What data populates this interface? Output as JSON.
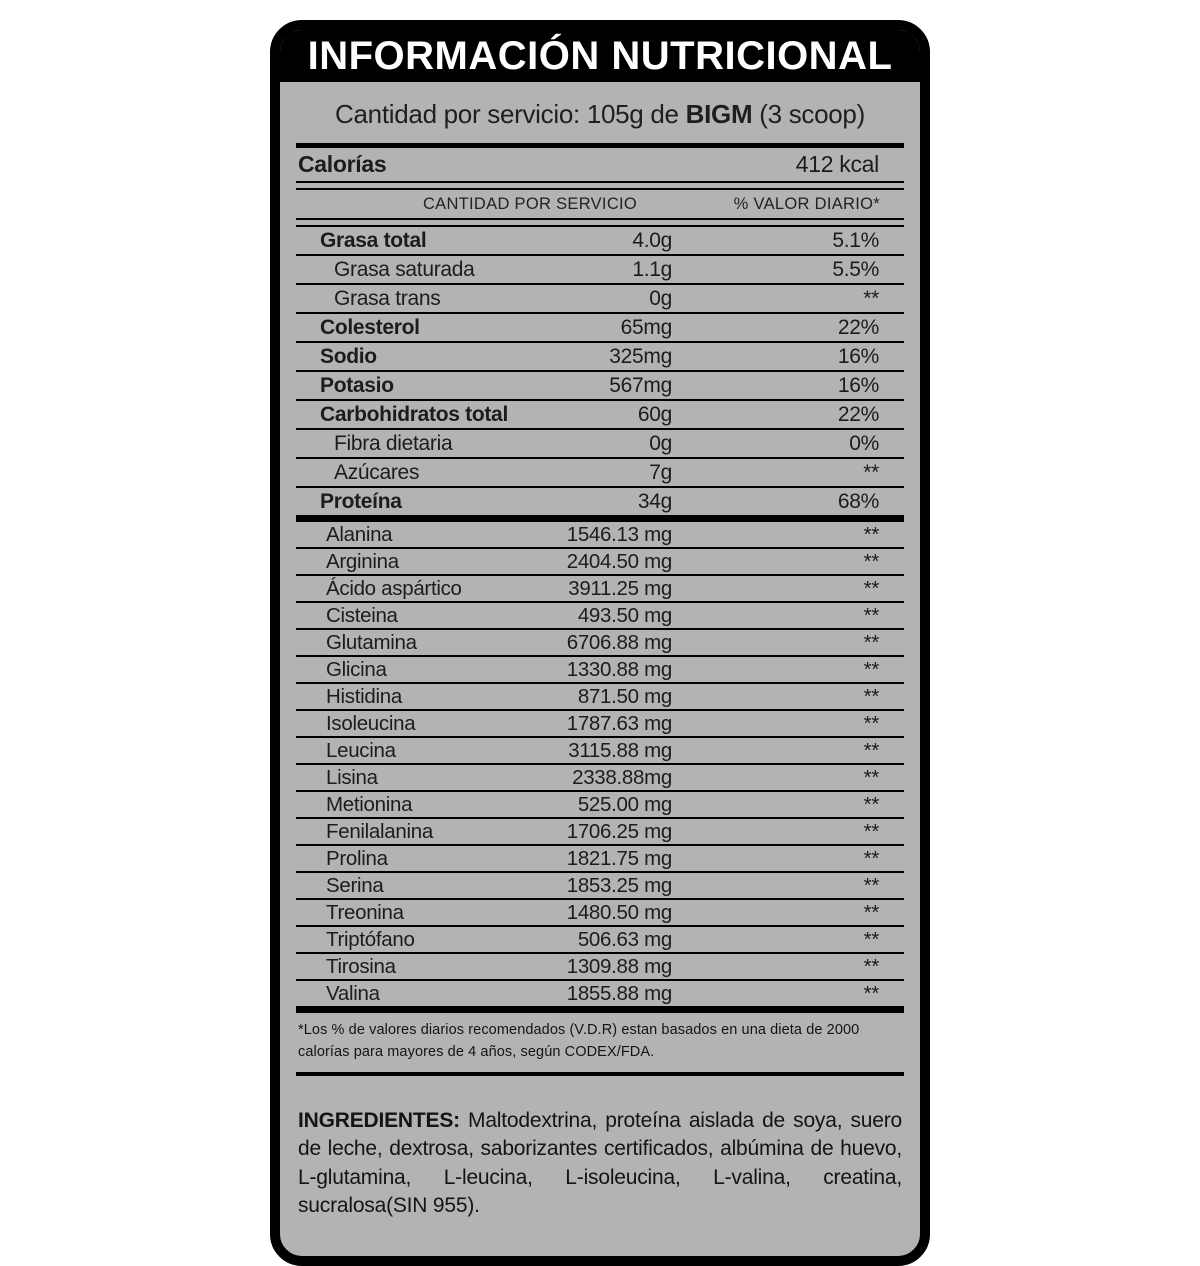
{
  "label": {
    "title": "INFORMACIÓN NUTRICIONAL",
    "serving_line": {
      "prefix": "Cantidad por servicio: 105g de ",
      "brand": "BIGM",
      "suffix": " (3 scoop)"
    },
    "calories": {
      "name": "Calorías",
      "value": "412 kcal"
    },
    "columns": {
      "amount": "CANTIDAD POR SERVICIO",
      "daily": "% VALOR DIARIO*"
    },
    "nutrients": [
      {
        "name": "Grasa total",
        "amount": "4.0g",
        "daily": "5.1%",
        "bold": true,
        "indent": false
      },
      {
        "name": "Grasa saturada",
        "amount": "1.1g",
        "daily": "5.5%",
        "bold": false,
        "indent": true
      },
      {
        "name": "Grasa trans",
        "amount": "0g",
        "daily": "**",
        "bold": false,
        "indent": true
      },
      {
        "name": "Colesterol",
        "amount": "65mg",
        "daily": "22%",
        "bold": true,
        "indent": false
      },
      {
        "name": "Sodio",
        "amount": "325mg",
        "daily": "16%",
        "bold": true,
        "indent": false
      },
      {
        "name": "Potasio",
        "amount": "567mg",
        "daily": "16%",
        "bold": true,
        "indent": false
      },
      {
        "name": "Carbohidratos total",
        "amount": "60g",
        "daily": "22%",
        "bold": true,
        "indent": false
      },
      {
        "name": "Fibra dietaria",
        "amount": "0g",
        "daily": "0%",
        "bold": false,
        "indent": true
      },
      {
        "name": "Azúcares",
        "amount": "7g",
        "daily": "**",
        "bold": false,
        "indent": true
      },
      {
        "name": "Proteína",
        "amount": "34g",
        "daily": "68%",
        "bold": true,
        "indent": false
      }
    ],
    "amino_acids": [
      {
        "name": "Alanina",
        "amount": "1546.13 mg",
        "daily": "**"
      },
      {
        "name": "Arginina",
        "amount": "2404.50 mg",
        "daily": "**"
      },
      {
        "name": "Ácido aspártico",
        "amount": "3911.25 mg",
        "daily": "**"
      },
      {
        "name": "Cisteina",
        "amount": "493.50 mg",
        "daily": "**"
      },
      {
        "name": "Glutamina",
        "amount": "6706.88 mg",
        "daily": "**"
      },
      {
        "name": "Glicina",
        "amount": "1330.88 mg",
        "daily": "**"
      },
      {
        "name": "Histidina",
        "amount": "871.50 mg",
        "daily": "**"
      },
      {
        "name": "Isoleucina",
        "amount": "1787.63 mg",
        "daily": "**"
      },
      {
        "name": "Leucina",
        "amount": "3115.88 mg",
        "daily": "**"
      },
      {
        "name": "Lisina",
        "amount": "2338.88mg",
        "daily": "**"
      },
      {
        "name": "Metionina",
        "amount": "525.00 mg",
        "daily": "**"
      },
      {
        "name": "Fenilalanina",
        "amount": "1706.25 mg",
        "daily": "**"
      },
      {
        "name": "Prolina",
        "amount": "1821.75 mg",
        "daily": "**"
      },
      {
        "name": "Serina",
        "amount": "1853.25 mg",
        "daily": "**"
      },
      {
        "name": "Treonina",
        "amount": "1480.50 mg",
        "daily": "**"
      },
      {
        "name": "Triptófano",
        "amount": "506.63 mg",
        "daily": "**"
      },
      {
        "name": "Tirosina",
        "amount": "1309.88 mg",
        "daily": "**"
      },
      {
        "name": "Valina",
        "amount": "1855.88 mg",
        "daily": "**"
      }
    ],
    "footnote": "*Los % de valores diarios recomendados (V.D.R) estan basados en una dieta de 2000 calorías para mayores de 4 años, según CODEX/FDA.",
    "ingredients": {
      "label": "INGREDIENTES:",
      "text": " Maltodextrina, proteína aislada de soya, suero de leche, dextrosa, saborizantes certificados, albúmina de huevo, L-glutamina, L-leucina, L-isoleucina, L-valina, creatina, sucralosa(SIN 955)."
    },
    "colors": {
      "panel_bg": "#b3b3b3",
      "band_bg": "#000000",
      "text": "#1c1c1c"
    }
  }
}
